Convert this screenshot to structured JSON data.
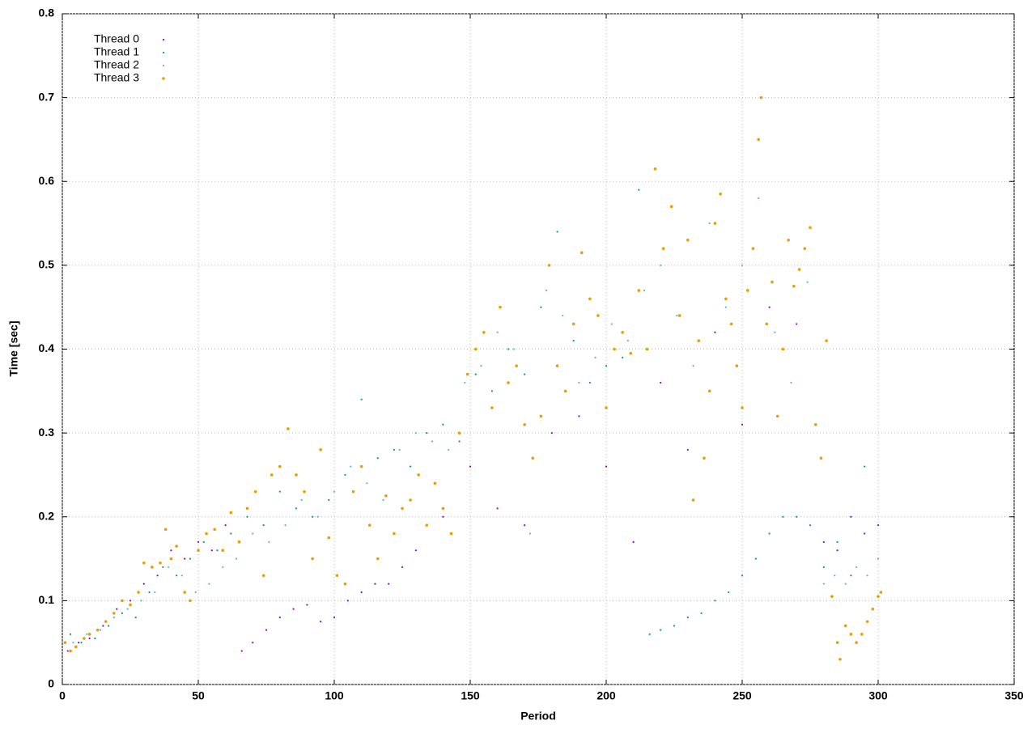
{
  "chart_data": {
    "type": "scatter",
    "xlabel": "Period",
    "ylabel": "Time [sec]",
    "xlim": [
      0,
      350
    ],
    "ylim": [
      0,
      0.8
    ],
    "xticks": [
      0,
      50,
      100,
      150,
      200,
      250,
      300,
      350
    ],
    "yticks": [
      0,
      0.1,
      0.2,
      0.3,
      0.4,
      0.5,
      0.6,
      0.7,
      0.8
    ],
    "grid": true,
    "legend": "top-left",
    "series": [
      {
        "name": "Thread 0",
        "color": "#9400d3",
        "x": [
          2,
          6,
          10,
          15,
          20,
          25,
          30,
          35,
          40,
          45,
          50,
          55,
          60,
          66,
          70,
          75,
          80,
          85,
          90,
          95,
          100,
          105,
          110,
          115,
          120,
          125,
          130,
          140,
          150,
          160,
          170,
          180,
          190,
          200,
          210,
          220,
          230,
          240,
          250,
          260,
          270,
          280,
          285,
          290,
          295,
          300
        ],
        "values": [
          0.04,
          0.05,
          0.055,
          0.07,
          0.09,
          0.1,
          0.12,
          0.13,
          0.16,
          0.15,
          0.17,
          0.16,
          0.19,
          0.04,
          0.05,
          0.065,
          0.08,
          0.09,
          0.095,
          0.075,
          0.08,
          0.1,
          0.11,
          0.12,
          0.12,
          0.14,
          0.16,
          0.2,
          0.26,
          0.21,
          0.19,
          0.3,
          0.32,
          0.26,
          0.17,
          0.36,
          0.28,
          0.42,
          0.31,
          0.45,
          0.43,
          0.17,
          0.16,
          0.2,
          0.18,
          0.19
        ]
      },
      {
        "name": "Thread 1",
        "color": "#009e73",
        "x": [
          3,
          7,
          12,
          17,
          22,
          27,
          32,
          37,
          42,
          47,
          52,
          57,
          62,
          68,
          74,
          80,
          86,
          92,
          98,
          104,
          110,
          116,
          122,
          128,
          134,
          140,
          146,
          152,
          158,
          164,
          170,
          176,
          182,
          188,
          194,
          200,
          206,
          212,
          216,
          220,
          225,
          230,
          235,
          240,
          245,
          250,
          255,
          260,
          265,
          270,
          275,
          280,
          285,
          290,
          295,
          300
        ],
        "values": [
          0.06,
          0.05,
          0.055,
          0.07,
          0.085,
          0.08,
          0.11,
          0.14,
          0.13,
          0.15,
          0.17,
          0.16,
          0.18,
          0.2,
          0.19,
          0.23,
          0.21,
          0.2,
          0.22,
          0.25,
          0.34,
          0.27,
          0.28,
          0.26,
          0.3,
          0.31,
          0.29,
          0.37,
          0.35,
          0.4,
          0.37,
          0.45,
          0.54,
          0.41,
          0.36,
          0.38,
          0.39,
          0.59,
          0.06,
          0.065,
          0.07,
          0.08,
          0.085,
          0.1,
          0.11,
          0.13,
          0.15,
          0.18,
          0.2,
          0.2,
          0.19,
          0.14,
          0.17,
          0.13,
          0.26,
          0.15
        ]
      },
      {
        "name": "Thread 2",
        "color": "#56b4e9",
        "x": [
          4,
          9,
          14,
          19,
          24,
          29,
          34,
          39,
          44,
          49,
          54,
          59,
          64,
          70,
          76,
          82,
          88,
          94,
          100,
          106,
          112,
          118,
          124,
          130,
          136,
          142,
          148,
          154,
          160,
          166,
          172,
          178,
          184,
          190,
          196,
          202,
          208,
          214,
          220,
          226,
          232,
          238,
          244,
          250,
          256,
          262,
          268,
          274,
          280,
          284,
          288,
          292,
          296,
          300
        ],
        "values": [
          0.05,
          0.06,
          0.065,
          0.08,
          0.09,
          0.1,
          0.11,
          0.14,
          0.13,
          0.11,
          0.12,
          0.14,
          0.15,
          0.18,
          0.17,
          0.19,
          0.22,
          0.2,
          0.23,
          0.26,
          0.24,
          0.22,
          0.28,
          0.3,
          0.29,
          0.28,
          0.36,
          0.38,
          0.42,
          0.4,
          0.18,
          0.47,
          0.44,
          0.36,
          0.39,
          0.43,
          0.41,
          0.47,
          0.5,
          0.44,
          0.38,
          0.55,
          0.45,
          0.5,
          0.58,
          0.42,
          0.36,
          0.48,
          0.12,
          0.13,
          0.12,
          0.14,
          0.13,
          0.15
        ]
      },
      {
        "name": "Thread 3",
        "color": "#e69f00",
        "x": [
          1,
          3,
          5,
          8,
          10,
          13,
          16,
          19,
          22,
          25,
          28,
          30,
          33,
          36,
          38,
          40,
          42,
          45,
          47,
          50,
          53,
          56,
          59,
          62,
          65,
          68,
          71,
          74,
          77,
          80,
          83,
          86,
          89,
          92,
          95,
          98,
          101,
          104,
          107,
          110,
          113,
          116,
          119,
          122,
          125,
          128,
          131,
          134,
          137,
          140,
          143,
          146,
          149,
          152,
          155,
          158,
          161,
          164,
          167,
          170,
          173,
          176,
          179,
          182,
          185,
          188,
          191,
          194,
          197,
          200,
          203,
          206,
          209,
          212,
          215,
          218,
          221,
          224,
          227,
          230,
          232,
          234,
          236,
          238,
          240,
          242,
          244,
          246,
          248,
          250,
          252,
          254,
          256,
          257,
          259,
          261,
          263,
          265,
          267,
          269,
          271,
          273,
          275,
          277,
          279,
          281,
          283,
          285,
          286,
          288,
          290,
          292,
          294,
          296,
          298,
          300,
          301
        ],
        "values": [
          0.05,
          0.04,
          0.045,
          0.055,
          0.06,
          0.065,
          0.075,
          0.085,
          0.1,
          0.095,
          0.11,
          0.145,
          0.14,
          0.145,
          0.185,
          0.15,
          0.165,
          0.11,
          0.1,
          0.16,
          0.18,
          0.185,
          0.16,
          0.205,
          0.17,
          0.21,
          0.23,
          0.13,
          0.25,
          0.26,
          0.305,
          0.25,
          0.23,
          0.15,
          0.28,
          0.175,
          0.13,
          0.12,
          0.23,
          0.26,
          0.19,
          0.15,
          0.225,
          0.18,
          0.21,
          0.22,
          0.25,
          0.19,
          0.24,
          0.21,
          0.18,
          0.3,
          0.37,
          0.4,
          0.42,
          0.33,
          0.45,
          0.36,
          0.38,
          0.31,
          0.27,
          0.32,
          0.5,
          0.38,
          0.35,
          0.43,
          0.515,
          0.46,
          0.44,
          0.33,
          0.4,
          0.42,
          0.395,
          0.47,
          0.4,
          0.615,
          0.52,
          0.57,
          0.44,
          0.53,
          0.22,
          0.41,
          0.27,
          0.35,
          0.55,
          0.585,
          0.46,
          0.43,
          0.38,
          0.33,
          0.47,
          0.52,
          0.65,
          0.7,
          0.43,
          0.48,
          0.32,
          0.4,
          0.53,
          0.475,
          0.495,
          0.52,
          0.545,
          0.31,
          0.27,
          0.41,
          0.105,
          0.05,
          0.03,
          0.07,
          0.06,
          0.05,
          0.06,
          0.075,
          0.09,
          0.105,
          0.11
        ]
      }
    ]
  }
}
